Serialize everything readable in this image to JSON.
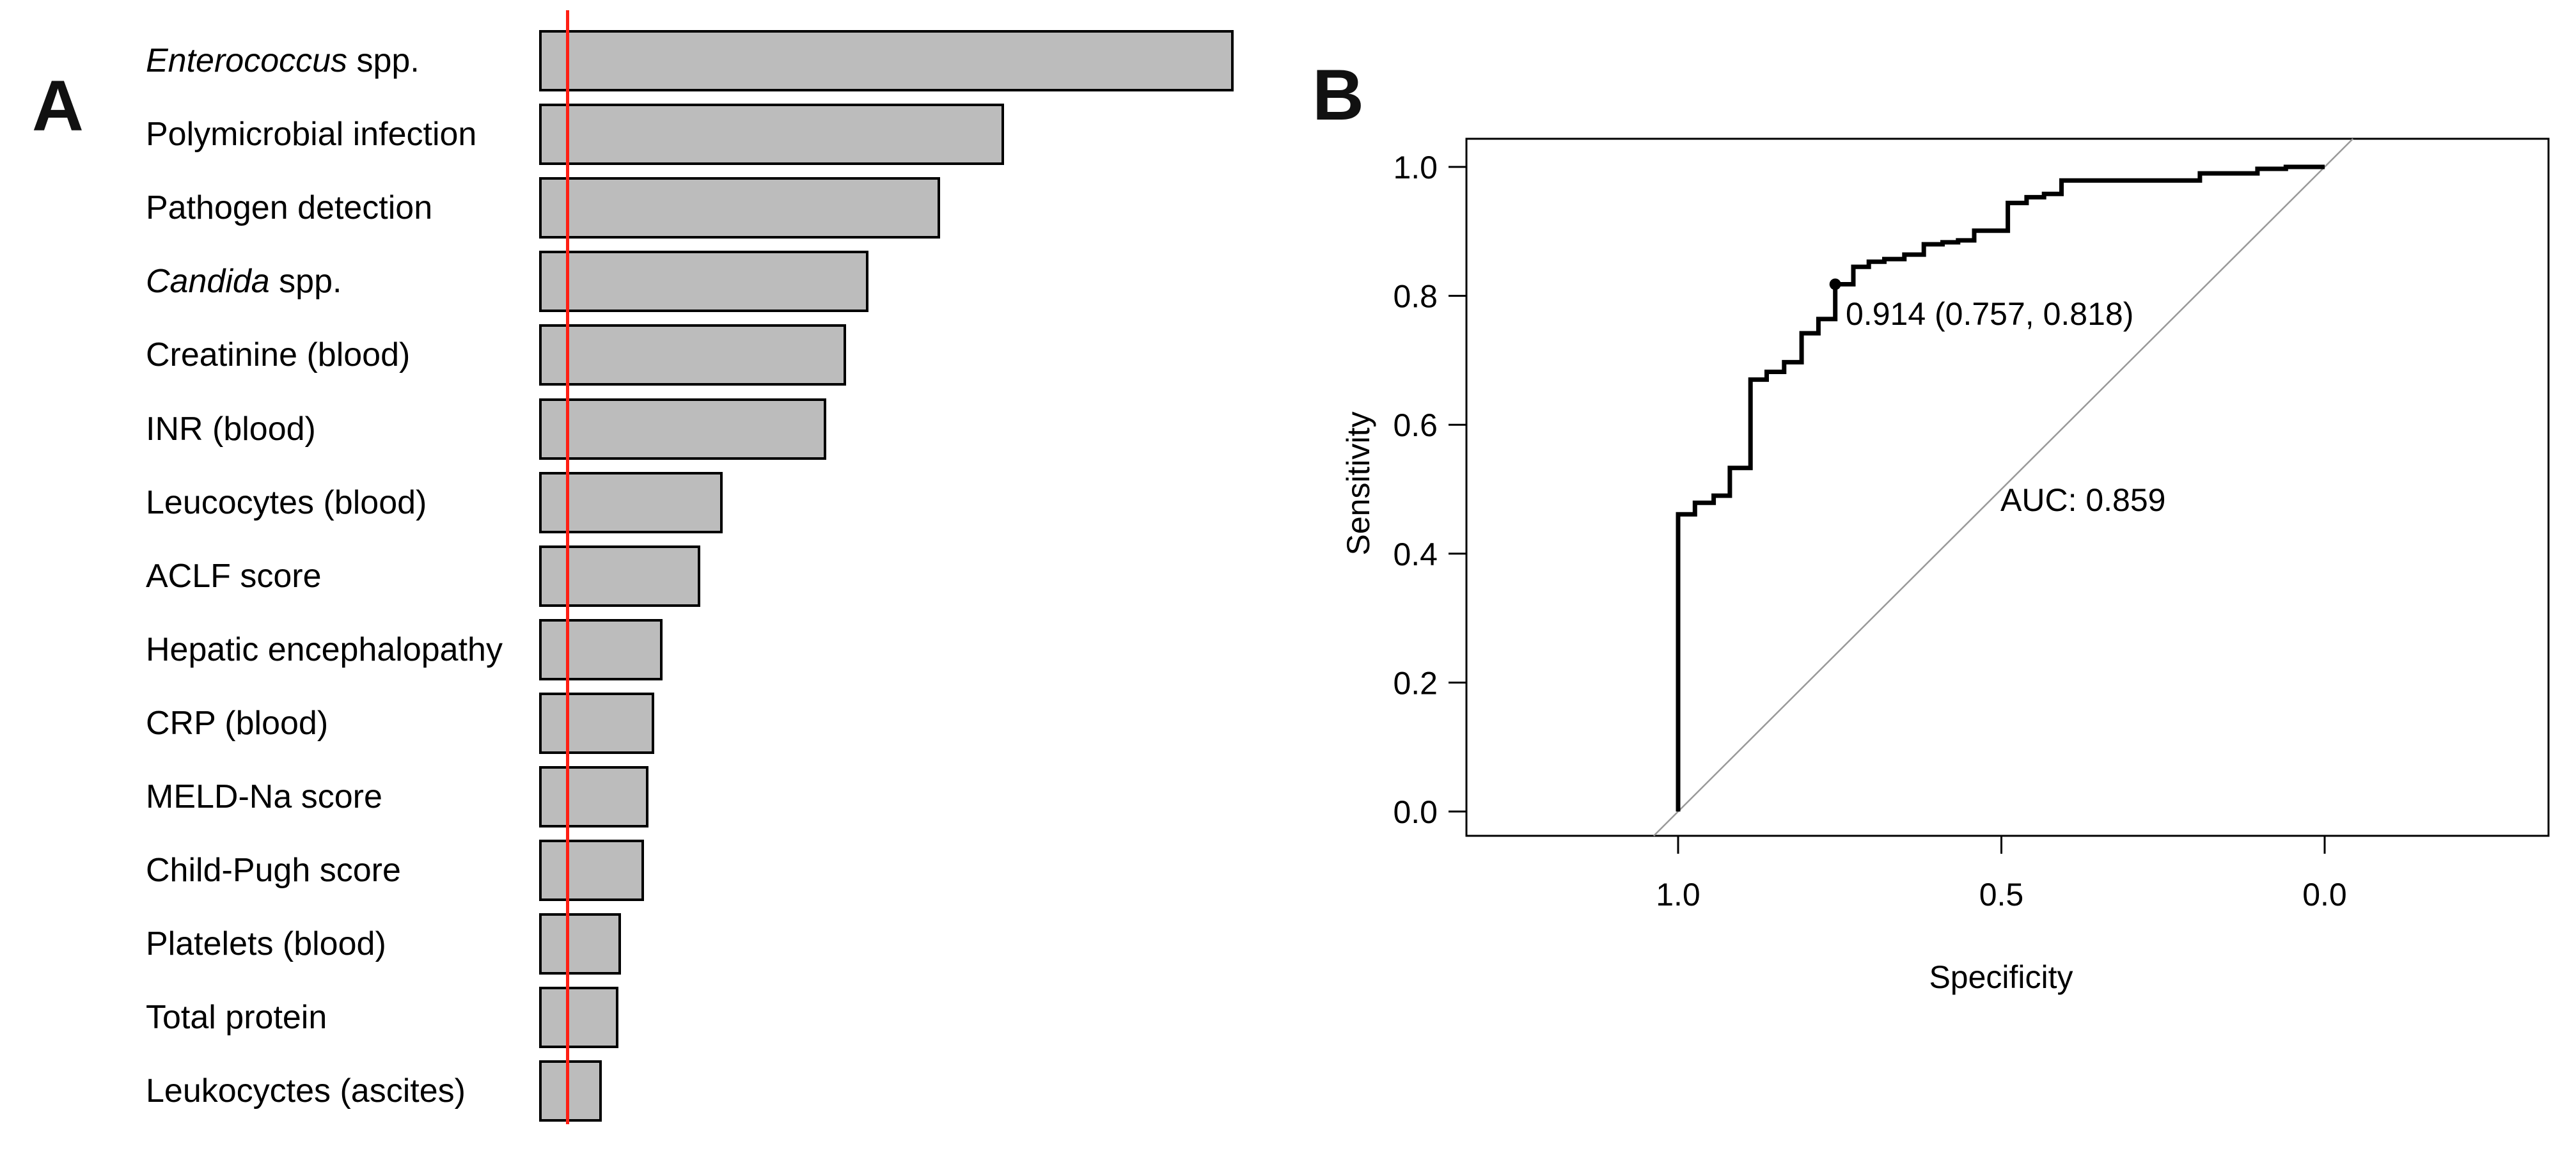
{
  "panels": {
    "a": {
      "title": "A"
    },
    "b": {
      "title": "B",
      "annotation": "0.914 (0.757, 0.818)",
      "auc_label": "AUC: 0.859",
      "xlabel": "Specificity",
      "ylabel": "Sensitivity"
    }
  },
  "colors": {
    "bar_fill": "#bcbcbc",
    "bar_border": "#000000",
    "reference_line": "#ff1f14",
    "roc_curve": "#000000",
    "diagonal": "#999999"
  },
  "chart_data": [
    {
      "type": "bar",
      "orientation": "horizontal",
      "title": "",
      "xlabel": "",
      "ylabel": "",
      "axis_shown": false,
      "grid": false,
      "value_unit": "relative variable importance (max bar = 100)",
      "categories": [
        "Enterococcus spp.",
        "Polymicrobial infection",
        "Pathogen detection",
        "Candida spp.",
        "Creatinine (blood)",
        "INR (blood)",
        "Leucocytes (blood)",
        "ACLF score",
        "Hepatic encephalopathy",
        "CRP (blood)",
        "MELD-Na score",
        "Child-Pugh score",
        "Platelets (blood)",
        "Total protein",
        "Leukocyctes (ascites)"
      ],
      "values": [
        100,
        66.9,
        57.7,
        47.4,
        44.2,
        41.3,
        26.4,
        23.2,
        17.8,
        16.6,
        15.7,
        15.1,
        11.8,
        11.4,
        9.0
      ],
      "italic_prefixes": {
        "Enterococcus spp.": "Enterococcus",
        "Candida spp.": "Candida"
      },
      "reference_line_value": 4.05
    },
    {
      "type": "line",
      "subtype": "roc",
      "xlabel": "Specificity",
      "ylabel": "Sensitivity",
      "x_reversed": true,
      "xticks": [
        1.0,
        0.5,
        0.0
      ],
      "yticks": [
        0.0,
        0.2,
        0.4,
        0.6,
        0.8,
        1.0
      ],
      "auc": 0.859,
      "cutoff": {
        "threshold": 0.914,
        "specificity": 0.757,
        "sensitivity": 0.818
      },
      "annotation_text": "0.914 (0.757, 0.818)",
      "auc_text": "AUC: 0.859",
      "diagonal_reference": true,
      "legend": "none",
      "roc_points": [
        [
          1.0,
          0.0
        ],
        [
          1.0,
          0.461
        ],
        [
          0.974,
          0.461
        ],
        [
          0.974,
          0.479
        ],
        [
          0.945,
          0.479
        ],
        [
          0.945,
          0.49
        ],
        [
          0.92,
          0.49
        ],
        [
          0.92,
          0.533
        ],
        [
          0.888,
          0.533
        ],
        [
          0.888,
          0.67
        ],
        [
          0.863,
          0.67
        ],
        [
          0.863,
          0.682
        ],
        [
          0.836,
          0.682
        ],
        [
          0.836,
          0.697
        ],
        [
          0.809,
          0.697
        ],
        [
          0.809,
          0.742
        ],
        [
          0.783,
          0.742
        ],
        [
          0.783,
          0.764
        ],
        [
          0.757,
          0.764
        ],
        [
          0.757,
          0.818
        ],
        [
          0.729,
          0.818
        ],
        [
          0.729,
          0.845
        ],
        [
          0.705,
          0.845
        ],
        [
          0.705,
          0.853
        ],
        [
          0.681,
          0.853
        ],
        [
          0.681,
          0.857
        ],
        [
          0.65,
          0.857
        ],
        [
          0.65,
          0.864
        ],
        [
          0.62,
          0.864
        ],
        [
          0.62,
          0.88
        ],
        [
          0.591,
          0.88
        ],
        [
          0.591,
          0.883
        ],
        [
          0.567,
          0.883
        ],
        [
          0.567,
          0.886
        ],
        [
          0.542,
          0.886
        ],
        [
          0.542,
          0.901
        ],
        [
          0.49,
          0.901
        ],
        [
          0.49,
          0.944
        ],
        [
          0.461,
          0.944
        ],
        [
          0.461,
          0.953
        ],
        [
          0.434,
          0.953
        ],
        [
          0.434,
          0.958
        ],
        [
          0.407,
          0.958
        ],
        [
          0.407,
          0.979
        ],
        [
          0.193,
          0.979
        ],
        [
          0.193,
          0.99
        ],
        [
          0.104,
          0.99
        ],
        [
          0.104,
          0.997
        ],
        [
          0.06,
          0.997
        ],
        [
          0.06,
          1.0
        ],
        [
          0.0,
          1.0
        ]
      ]
    }
  ]
}
